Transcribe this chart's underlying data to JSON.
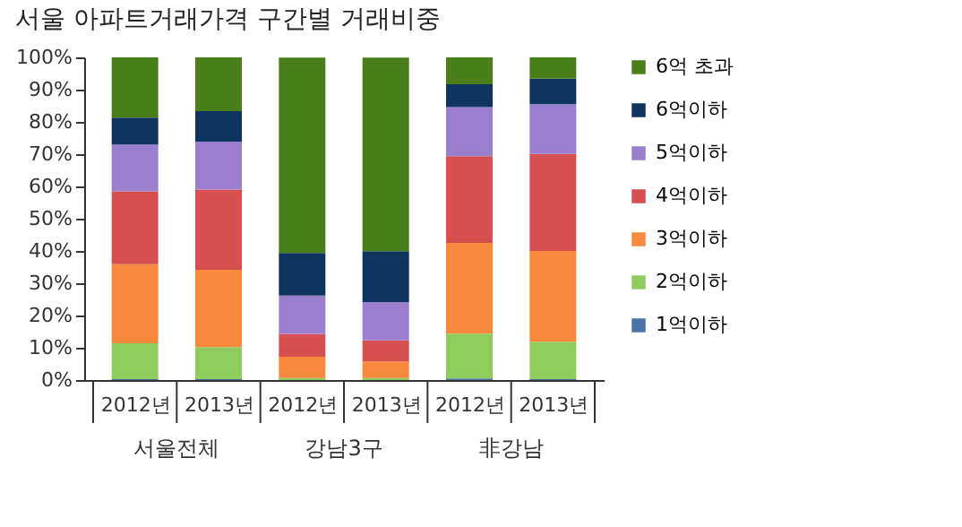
{
  "chart_data": {
    "type": "bar",
    "stacked": true,
    "title": "서울 아파트거래가격 구간별 거래비중",
    "categories": [
      "2012년",
      "2013년",
      "2012년",
      "2013년",
      "2012년",
      "2013년"
    ],
    "annotations": [
      "서울전체",
      "강남3구",
      "非강남"
    ],
    "series": [
      {
        "name": "1억이하",
        "color": "#4a74a8",
        "values": [
          0.3,
          0.3,
          null,
          null,
          0.5,
          0.3
        ]
      },
      {
        "name": "2억이하",
        "color": "#8fcc5e",
        "values": [
          11.1,
          9.9,
          0.6,
          0.6,
          13.9,
          11.6
        ]
      },
      {
        "name": "3억이하",
        "color": "#f78a3c",
        "values": [
          24.5,
          24.0,
          6.6,
          5.1,
          28.1,
          28.1
        ]
      },
      {
        "name": "4억이하",
        "color": "#d65050",
        "values": [
          22.6,
          24.8,
          7.1,
          6.6,
          26.9,
          30.1
        ]
      },
      {
        "name": "5억이하",
        "color": "#9b7fcf",
        "values": [
          14.5,
          14.9,
          11.9,
          11.9,
          15.2,
          15.4
        ]
      },
      {
        "name": "6억이하",
        "color": "#0f3460",
        "values": [
          8.3,
          9.4,
          13.2,
          15.7,
          7.1,
          7.9
        ]
      },
      {
        "name": "6억 초과",
        "color": "#4a7e1a",
        "values": [
          18.7,
          16.7,
          60.5,
          60.0,
          8.3,
          6.6
        ]
      }
    ],
    "ylim": [
      0,
      100
    ],
    "yticks": [
      {
        "value": 0,
        "label": "0%"
      },
      {
        "value": 10,
        "label": "10%"
      },
      {
        "value": 20,
        "label": "20%"
      },
      {
        "value": 30,
        "label": "30%"
      },
      {
        "value": 40,
        "label": "40%"
      },
      {
        "value": 50,
        "label": "50%"
      },
      {
        "value": 60,
        "label": "60%"
      },
      {
        "value": 70,
        "label": "70%"
      },
      {
        "value": 80,
        "label": "80%"
      },
      {
        "value": 90,
        "label": "90%"
      },
      {
        "value": 100,
        "label": "100%"
      }
    ],
    "grid": false,
    "legend": "right"
  }
}
